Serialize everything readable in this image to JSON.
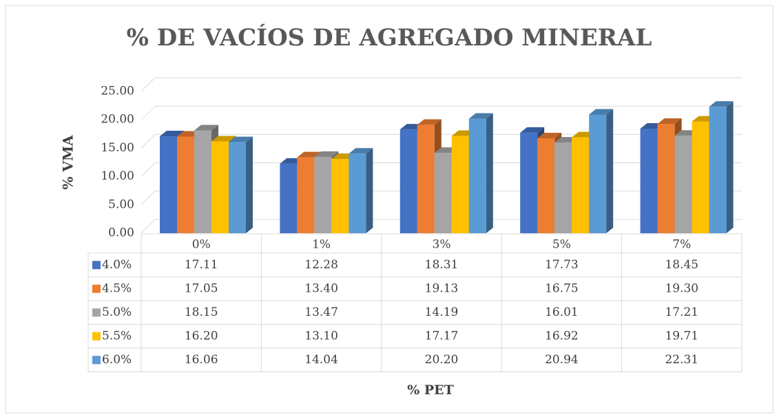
{
  "chart_data": {
    "type": "bar3d",
    "title": "% DE VACÍOS DE AGREGADO MINERAL",
    "y_label": "% VMA",
    "x_label": "% PET",
    "categories": [
      "0%",
      "1%",
      "3%",
      "5%",
      "7%"
    ],
    "series": [
      {
        "name": "4.0%",
        "color": "#4472c4",
        "values": [
          17.11,
          12.28,
          18.31,
          17.73,
          18.45
        ],
        "value_labels": [
          "17.11",
          "12.28",
          "18.31",
          "17.73",
          "18.45"
        ]
      },
      {
        "name": "4.5%",
        "color": "#ed7d31",
        "values": [
          17.05,
          13.4,
          19.13,
          16.75,
          19.3
        ],
        "value_labels": [
          "17.05",
          "13.40",
          "19.13",
          "16.75",
          "19.30"
        ]
      },
      {
        "name": "5.0%",
        "color": "#a5a5a5",
        "values": [
          18.15,
          13.47,
          14.19,
          16.01,
          17.21
        ],
        "value_labels": [
          "18.15",
          "13.47",
          "14.19",
          "16.01",
          "17.21"
        ]
      },
      {
        "name": "5.5%",
        "color": "#ffc000",
        "values": [
          16.2,
          13.1,
          17.17,
          16.92,
          19.71
        ],
        "value_labels": [
          "16.20",
          "13.10",
          "17.17",
          "16.92",
          "19.71"
        ]
      },
      {
        "name": "6.0%",
        "color": "#5b9bd5",
        "values": [
          16.06,
          14.04,
          20.2,
          20.94,
          22.31
        ],
        "value_labels": [
          "16.06",
          "14.04",
          "20.20",
          "20.94",
          "22.31"
        ]
      }
    ],
    "ylim": [
      0,
      25
    ],
    "yticks": [
      {
        "value": 0,
        "label": "0.00"
      },
      {
        "value": 5,
        "label": "5.00"
      },
      {
        "value": 10,
        "label": "10.00"
      },
      {
        "value": 15,
        "label": "15.00"
      },
      {
        "value": 20,
        "label": "20.00"
      },
      {
        "value": 25,
        "label": "25.00"
      }
    ],
    "grid": true
  }
}
